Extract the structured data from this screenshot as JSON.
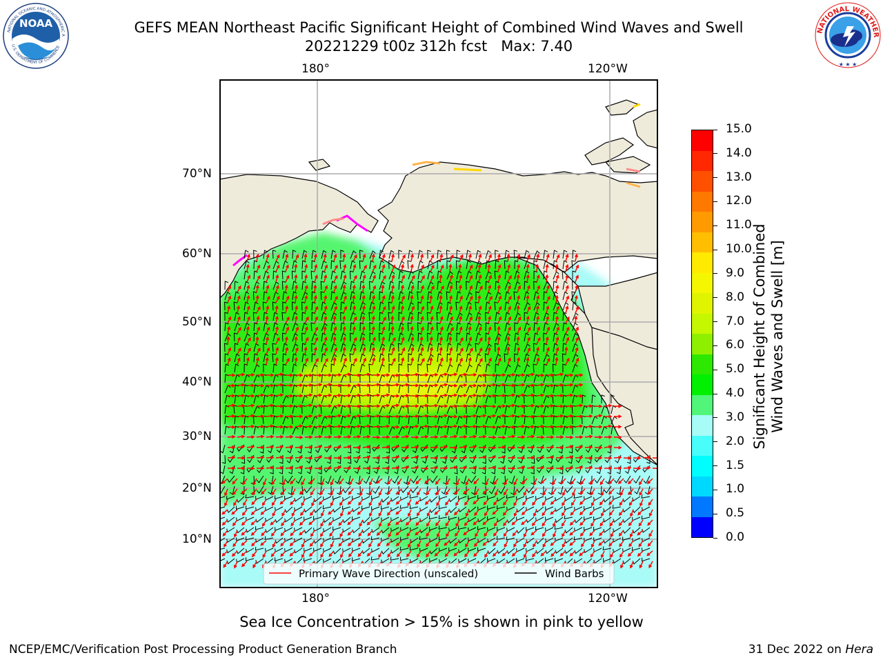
{
  "header": {
    "title_line1": "GEFS MEAN Northeast Pacific Significant Height of Combined Wind Waves and Swell",
    "title_line2": "20221229 t00z 312h fcst   Max: 7.40"
  },
  "logos": {
    "left": {
      "icon": "noaa-logo",
      "text": "NOAA"
    },
    "right": {
      "icon": "national-weather-service-logo",
      "text": "NATIONAL WEATHER SERVICE"
    }
  },
  "map": {
    "lon_labels_top": [
      "180°",
      "120°W"
    ],
    "lon_labels_bottom": [
      "180°",
      "120°W"
    ],
    "lat_labels": [
      "70°N",
      "60°N",
      "50°N",
      "40°N",
      "30°N",
      "20°N",
      "10°N"
    ],
    "land_color": "#efebdb",
    "ocean_colors": {
      "light_cyan": "#a8fbf7",
      "green_light": "#55f56f",
      "green": "#2dec18",
      "green_yellow": "#bdf505",
      "yellow": "#e6f70b"
    },
    "sea_ice_colors": [
      "#ff00ff",
      "#ff8a8a",
      "#ffb347",
      "#ffd700"
    ],
    "legend": {
      "wave_label": "Primary Wave Direction (unscaled)",
      "wave_color": "#ff0000",
      "barb_label": "Wind Barbs",
      "barb_color": "#000000"
    }
  },
  "colorbar": {
    "ticks": [
      "15.0",
      "14.0",
      "13.0",
      "12.0",
      "11.0",
      "10.0",
      "9.0",
      "8.0",
      "7.0",
      "6.0",
      "5.0",
      "4.0",
      "3.0",
      "2.0",
      "1.5",
      "1.0",
      "0.5",
      "0.0"
    ],
    "colors": [
      "#ff0000",
      "#ff2800",
      "#ff5000",
      "#ff7800",
      "#ff9b00",
      "#ffbe00",
      "#ffea00",
      "#f4f700",
      "#e0f400",
      "#c4f700",
      "#8ef000",
      "#2de800",
      "#00f000",
      "#50f57a",
      "#a8fcf8",
      "#49fdfb",
      "#00fefe",
      "#00d9ff",
      "#0078ff",
      "#0000ff"
    ],
    "label_line1": "Significant Height of Combined",
    "label_line2": "Wind Waves and Swell [m]"
  },
  "note": "Sea Ice Concentration > 15% is shown in pink to yellow",
  "footer": {
    "left": "NCEP/EMC/Verification Post Processing Product Generation Branch",
    "right_prefix": "31 Dec 2022 on ",
    "right_host": "Hera"
  }
}
